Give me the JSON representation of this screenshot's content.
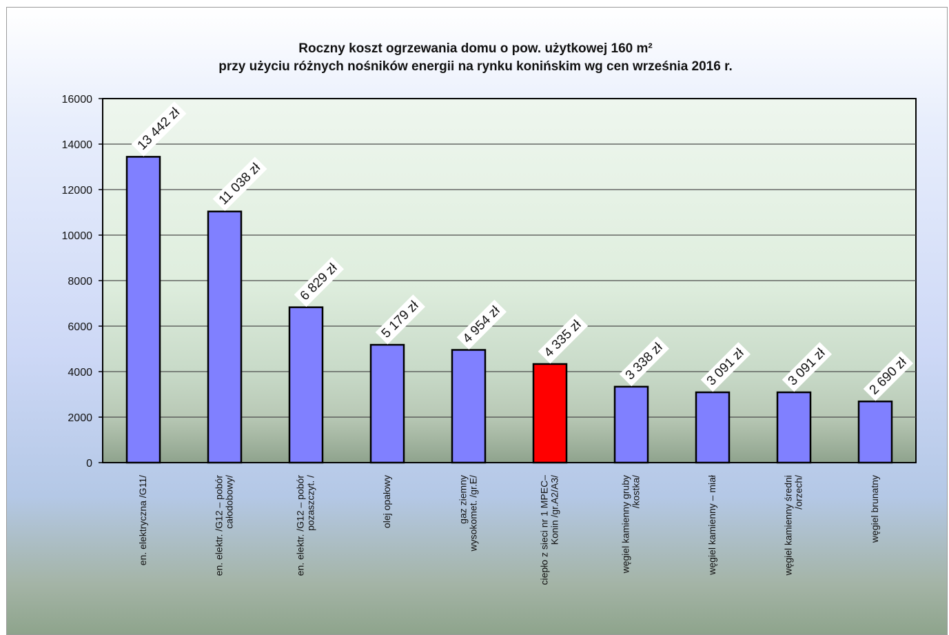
{
  "chart_data": {
    "type": "bar",
    "title": "Roczny koszt ogrzewania domu o pow. użytkowej 160 m²",
    "subtitle": "przy użyciu różnych nośników energii na rynku konińskim wg cen września 2016 r.",
    "categories": [
      [
        "en. elektryczna /G11/"
      ],
      [
        "en. elektr. /G12 – pobór",
        "całodobowy/"
      ],
      [
        "en. elektr. /G12 – pobór",
        "pozaszczyt. /"
      ],
      [
        "olej opałowy"
      ],
      [
        "gaz ziemny",
        "wysokomet. /gr.E/"
      ],
      [
        "ciepło z sieci nr 1 MPEC–",
        "Konin /gr.A2/A3/"
      ],
      [
        "węgiel kamienny gruby",
        "/kostka/"
      ],
      [
        "węgiel kamienny – miał"
      ],
      [
        "węgiel kamienny średni",
        "/orzech/"
      ],
      [
        "węgiel brunatny"
      ]
    ],
    "values": [
      13442,
      11038,
      6829,
      5179,
      4954,
      4335,
      3338,
      3091,
      3091,
      2690
    ],
    "data_labels": [
      "13 442 zł",
      "11 038 zł",
      "6 829 zł",
      "5 179 zł",
      "4 954 zł",
      "4 335 zł",
      "3 338 zł",
      "3 091 zł",
      "3 091 zł",
      "2 690 zł"
    ],
    "bar_colors": [
      "#8080ff",
      "#8080ff",
      "#8080ff",
      "#8080ff",
      "#8080ff",
      "#ff0000",
      "#8080ff",
      "#8080ff",
      "#8080ff",
      "#8080ff"
    ],
    "ylim": [
      0,
      16000
    ],
    "yticks": [
      0,
      2000,
      4000,
      6000,
      8000,
      10000,
      12000,
      14000,
      16000
    ],
    "grid": true,
    "legend": "none"
  }
}
